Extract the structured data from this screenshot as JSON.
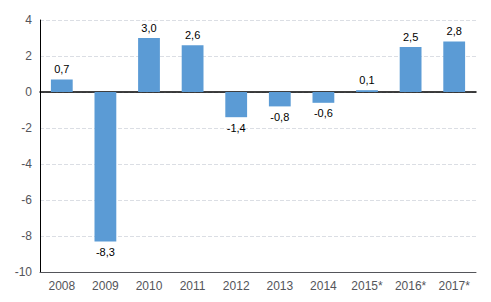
{
  "chart_data": {
    "type": "bar",
    "categories": [
      "2008",
      "2009",
      "2010",
      "2011",
      "2012",
      "2013",
      "2014",
      "2015*",
      "2016*",
      "2017*"
    ],
    "values": [
      0.7,
      -8.3,
      3.0,
      2.6,
      -1.4,
      -0.8,
      -0.6,
      0.1,
      2.5,
      2.8
    ],
    "value_labels": [
      "0,7",
      "-8,3",
      "3,0",
      "2,6",
      "-1,4",
      "-0,8",
      "-0,6",
      "0,1",
      "2,5",
      "2,8"
    ],
    "color": "#5b9bd5",
    "ylim": [
      -10,
      4
    ],
    "yticks": [
      -10,
      -8,
      -6,
      -4,
      -2,
      0,
      2,
      4
    ],
    "grid": true,
    "data_labels": true
  }
}
